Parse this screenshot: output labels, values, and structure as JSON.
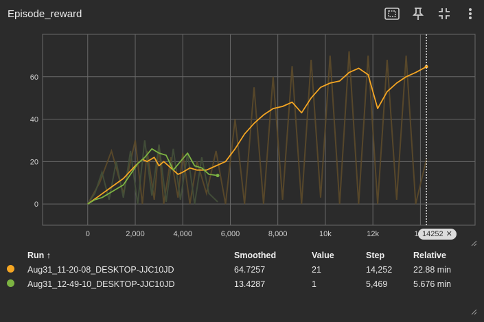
{
  "card": {
    "title": "Episode_reward"
  },
  "toolbar": {
    "icons": [
      "fit-domain-icon",
      "pin-icon",
      "collapse-icon",
      "more-vert-icon"
    ]
  },
  "chart_data": {
    "type": "line",
    "title": "",
    "xlabel": "",
    "ylabel": "",
    "x_ticks": [
      "0",
      "2,000",
      "4,000",
      "6,000",
      "8,000",
      "10k",
      "12k",
      "14k"
    ],
    "y_ticks": [
      "0",
      "20",
      "40",
      "60"
    ],
    "xlim": [
      -1900,
      16300
    ],
    "ylim": [
      -10,
      80
    ],
    "grid": true,
    "hover_step": 14252,
    "series": [
      {
        "name": "Aug31_11-20-08_DESKTOP-JJC10JD",
        "color": "#f5a623",
        "raw_color": "#5c4a2a",
        "x": [
          0,
          500,
          1000,
          1500,
          2000,
          2300,
          2500,
          2800,
          3000,
          3200,
          3500,
          3800,
          4000,
          4300,
          4600,
          5000,
          5400,
          5800,
          6200,
          6600,
          7000,
          7400,
          7800,
          8200,
          8600,
          9000,
          9400,
          9800,
          10200,
          10600,
          11000,
          11400,
          11800,
          12200,
          12600,
          13000,
          13400,
          13800,
          14252
        ],
        "y": [
          0,
          4,
          8,
          12,
          18,
          21,
          20,
          22,
          18,
          20,
          17,
          14,
          15,
          17,
          16,
          16,
          18,
          20,
          26,
          33,
          38,
          42,
          45,
          46,
          48,
          43,
          50,
          55,
          57,
          58,
          62,
          64,
          61,
          45,
          53,
          57,
          60,
          62,
          64.73
        ],
        "raw_y": [
          0,
          10,
          25,
          5,
          30,
          0,
          25,
          2,
          28,
          0,
          22,
          3,
          24,
          0,
          20,
          5,
          25,
          0,
          40,
          0,
          55,
          0,
          60,
          2,
          65,
          0,
          68,
          3,
          70,
          0,
          72,
          0,
          70,
          0,
          68,
          2,
          70,
          0,
          21
        ]
      },
      {
        "name": "Aug31_12-49-10_DESKTOP-JJC10JD",
        "color": "#7cb342",
        "raw_color": "#44503a",
        "x": [
          0,
          300,
          600,
          900,
          1200,
          1500,
          1800,
          2100,
          2400,
          2700,
          3000,
          3300,
          3600,
          3900,
          4200,
          4500,
          4800,
          5100,
          5469
        ],
        "y": [
          0,
          2,
          3,
          5,
          7,
          9,
          14,
          19,
          22,
          26,
          24,
          23,
          16,
          20,
          24,
          18,
          17,
          14,
          13.43
        ],
        "raw_y": [
          0,
          5,
          15,
          2,
          20,
          3,
          25,
          0,
          30,
          4,
          28,
          1,
          26,
          2,
          24,
          0,
          22,
          5,
          1
        ]
      }
    ]
  },
  "step_chip": {
    "label": "14252"
  },
  "table": {
    "headers": {
      "run": "Run",
      "smoothed": "Smoothed",
      "value": "Value",
      "step": "Step",
      "relative": "Relative"
    },
    "rows": [
      {
        "color": "#f5a623",
        "run": "Aug31_11-20-08_DESKTOP-JJC10JD",
        "smoothed": "64.7257",
        "value": "21",
        "step": "14,252",
        "relative": "22.88 min"
      },
      {
        "color": "#7cb342",
        "run": "Aug31_12-49-10_DESKTOP-JJC10JD",
        "smoothed": "13.4287",
        "value": "1",
        "step": "5,469",
        "relative": "5.676 min"
      }
    ]
  }
}
